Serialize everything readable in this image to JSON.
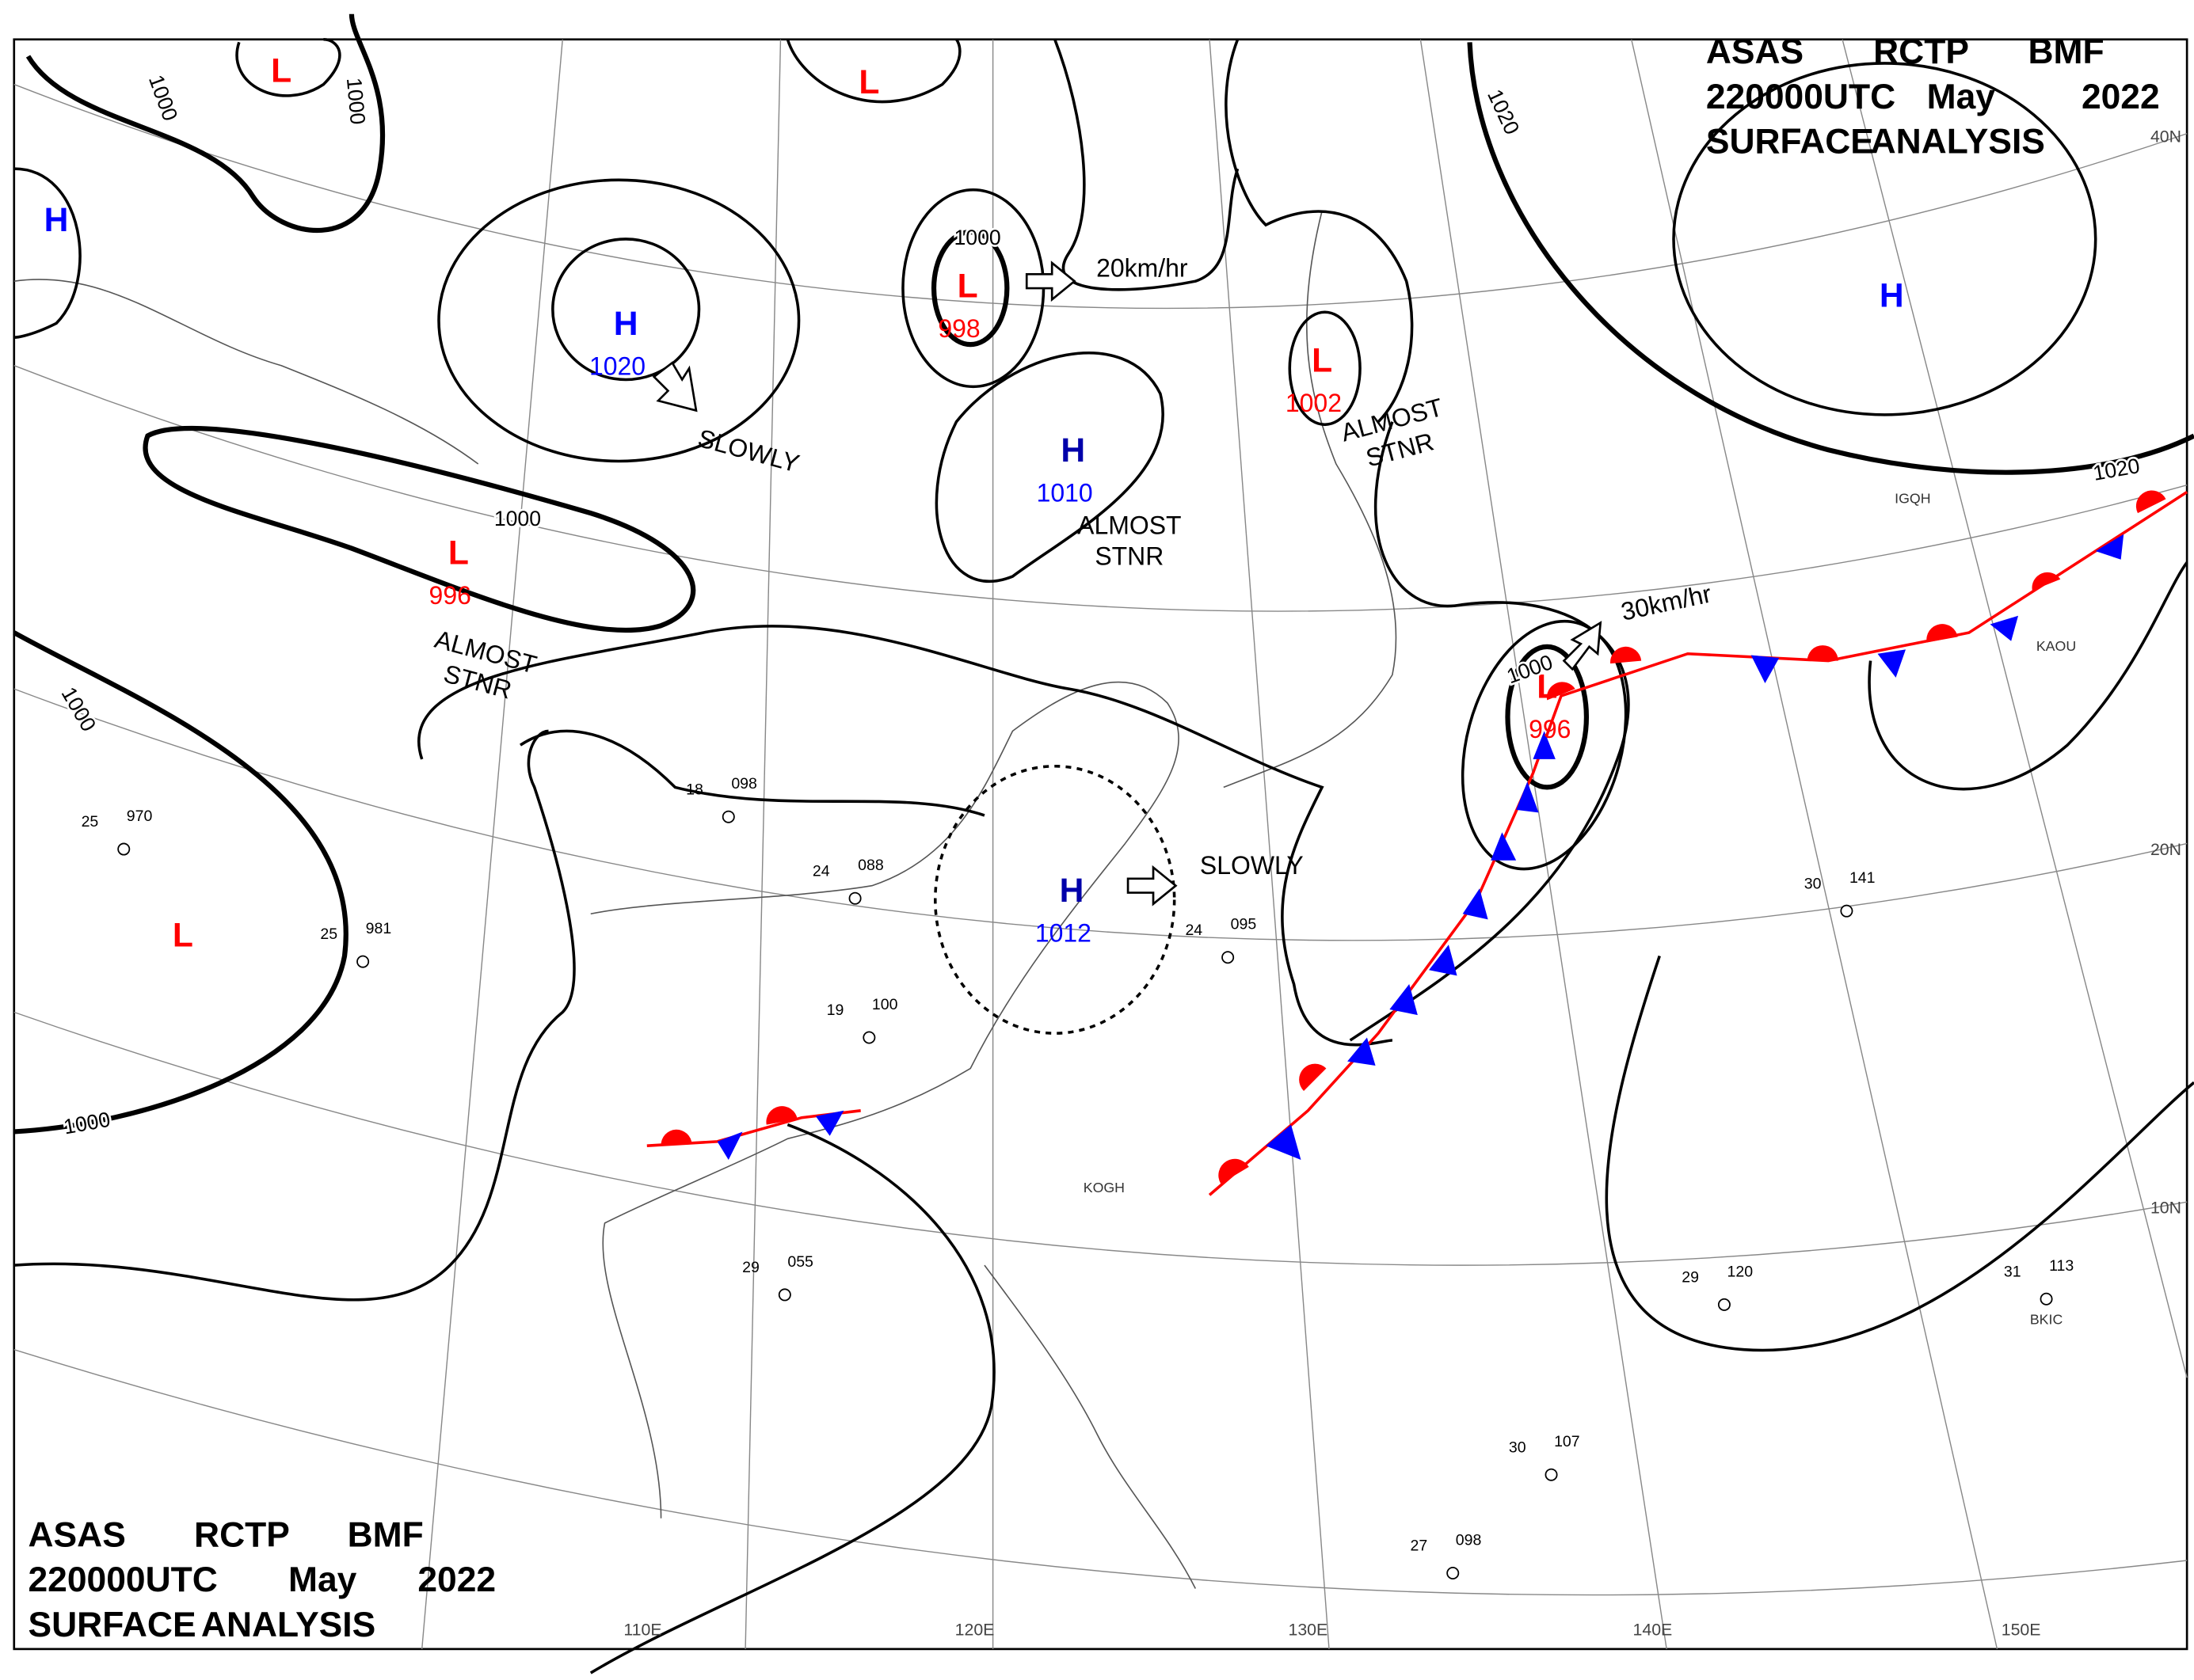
{
  "header": {
    "lines": [
      [
        "ASAS",
        "RCTP",
        "BMF"
      ],
      [
        "220000UTC",
        "May",
        "2022"
      ],
      [
        "SURFACE",
        "ANALYSIS"
      ]
    ]
  },
  "systems": [
    {
      "symbol": "H",
      "pressure": 1020,
      "color": "#0000ff",
      "pressure_color": "#0000ff"
    },
    {
      "symbol": "L",
      "pressure": 998,
      "color": "#ff0000",
      "pressure_color": "#ff0000"
    },
    {
      "symbol": "H",
      "pressure": 1010,
      "color": "#0000aa",
      "pressure_color": "#0000ff"
    },
    {
      "symbol": "L",
      "pressure": 1002,
      "color": "#ff0000",
      "pressure_color": "#ff0000"
    },
    {
      "symbol": "L",
      "pressure": 996,
      "color": "#ff0000",
      "pressure_color": "#ff0000"
    },
    {
      "symbol": "H",
      "pressure": 1012,
      "color": "#0000aa",
      "pressure_color": "#0000ff"
    },
    {
      "symbol": "L",
      "pressure": 996,
      "color": "#ff0000",
      "pressure_color": "#ff0000"
    },
    {
      "symbol": "H",
      "color": "#0000ff"
    },
    {
      "symbol": "L",
      "color": "#ff0000"
    },
    {
      "symbol": "L",
      "color": "#ff0000"
    },
    {
      "symbol": "H",
      "color": "#0000ff"
    },
    {
      "symbol": "L",
      "color": "#ff0000"
    }
  ],
  "isobar_labels": [
    1000,
    1000,
    1000,
    1000,
    1000,
    1000,
    1000,
    1020,
    1020
  ],
  "movements": [
    [
      "SLOWLY"
    ],
    [
      "20km/hr"
    ],
    [
      "ALMOST",
      "STNR"
    ],
    [
      "ALMOST",
      "STNR"
    ],
    [
      "ALMOST",
      "STNR"
    ],
    [
      "30km/hr"
    ],
    [
      "SLOWLY"
    ]
  ],
  "grid_labels": [
    "110E",
    "120E",
    "130E",
    "140E",
    "150E",
    "40N",
    "20N",
    "10N"
  ],
  "stations": [
    {
      "temp": "29",
      "pressure": "120"
    },
    {
      "temp": "30",
      "pressure": "141"
    },
    {
      "temp": "31",
      "pressure": "113"
    },
    {
      "temp": "30",
      "pressure": "107"
    },
    {
      "temp": "27",
      "pressure": "098"
    },
    {
      "temp": "29",
      "pressure": "055"
    },
    {
      "temp": "24",
      "pressure": "088"
    },
    {
      "temp": "19",
      "pressure": "100"
    },
    {
      "temp": "18",
      "pressure": "098"
    },
    {
      "temp": "24",
      "pressure": "095"
    },
    {
      "temp": "25",
      "pressure": "970"
    },
    {
      "temp": "25",
      "pressure": "981"
    }
  ],
  "station_ids": [
    "KOGH",
    "KAOU",
    "BKIC",
    "IGQH"
  ]
}
